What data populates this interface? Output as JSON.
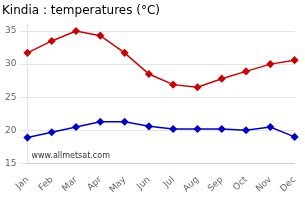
{
  "chart_data": {
    "type": "line",
    "title": "Kindia : temperatures (°C)",
    "categories": [
      "Jan",
      "Feb",
      "Mar",
      "Apr",
      "May",
      "Jun",
      "Jul",
      "Aug",
      "Sep",
      "Oct",
      "Nov",
      "Dec"
    ],
    "series": [
      {
        "color": "#cc0000",
        "marker": "diamond",
        "values": [
          31.7,
          33.5,
          35.0,
          34.3,
          31.7,
          28.5,
          26.9,
          26.5,
          27.8,
          28.9,
          30.0,
          30.6
        ]
      },
      {
        "color": "#0000cc",
        "marker": "diamond",
        "values": [
          18.9,
          19.7,
          20.5,
          21.3,
          21.3,
          20.6,
          20.2,
          20.2,
          20.2,
          20.0,
          20.5,
          19.0
        ]
      }
    ],
    "ylim": [
      15,
      36
    ],
    "yticks": [
      15,
      20,
      25,
      30,
      35
    ],
    "grid": true,
    "annotations": [
      "www.allmetsat.com"
    ]
  }
}
